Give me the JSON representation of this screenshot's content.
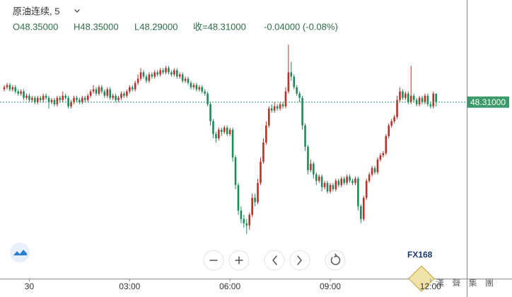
{
  "header": {
    "title": "原油连续, 5",
    "items": [
      "O48.35000",
      "H48.35000",
      "L48.29000",
      "收=48.31000",
      "-0.04000 (-0.08%)"
    ]
  },
  "watermark": {
    "logo": "FX168",
    "name": "漢 聲 集 團"
  },
  "chart_data": {
    "type": "candlestick",
    "up_color": "#b8322a",
    "down_color": "#1f8a5b",
    "ylim": [
      47.48,
      48.79
    ],
    "last_price": {
      "value": 48.31,
      "label": "48.31000"
    },
    "xticks": [
      {
        "value": 9,
        "label": "30"
      },
      {
        "value": 45,
        "label": "03:00"
      },
      {
        "value": 81,
        "label": "06:00"
      },
      {
        "value": 117,
        "label": "09:00"
      },
      {
        "value": 153,
        "label": "12:00"
      }
    ],
    "candles": [
      [
        48.37,
        48.39,
        48.36,
        48.38
      ],
      [
        48.38,
        48.4,
        48.37,
        48.39
      ],
      [
        48.39,
        48.4,
        48.36,
        48.37
      ],
      [
        48.37,
        48.39,
        48.36,
        48.38
      ],
      [
        48.38,
        48.39,
        48.35,
        48.36
      ],
      [
        48.36,
        48.37,
        48.34,
        48.35
      ],
      [
        48.35,
        48.37,
        48.34,
        48.36
      ],
      [
        48.36,
        48.37,
        48.32,
        48.33
      ],
      [
        48.33,
        48.35,
        48.32,
        48.34
      ],
      [
        48.34,
        48.35,
        48.31,
        48.32
      ],
      [
        48.32,
        48.34,
        48.31,
        48.33
      ],
      [
        48.33,
        48.34,
        48.3,
        48.31
      ],
      [
        48.31,
        48.34,
        48.3,
        48.33
      ],
      [
        48.33,
        48.34,
        48.31,
        48.32
      ],
      [
        48.32,
        48.35,
        48.31,
        48.34
      ],
      [
        48.34,
        48.35,
        48.32,
        48.33
      ],
      [
        48.33,
        48.34,
        48.28,
        48.31
      ],
      [
        48.31,
        48.33,
        48.3,
        48.32
      ],
      [
        48.32,
        48.33,
        48.29,
        48.3
      ],
      [
        48.3,
        48.34,
        48.29,
        48.33
      ],
      [
        48.33,
        48.34,
        48.31,
        48.32
      ],
      [
        48.32,
        48.36,
        48.31,
        48.34
      ],
      [
        48.34,
        48.35,
        48.32,
        48.33
      ],
      [
        48.33,
        48.34,
        48.28,
        48.29
      ],
      [
        48.29,
        48.32,
        48.28,
        48.31
      ],
      [
        48.31,
        48.34,
        48.3,
        48.33
      ],
      [
        48.33,
        48.34,
        48.31,
        48.32
      ],
      [
        48.32,
        48.33,
        48.3,
        48.31
      ],
      [
        48.31,
        48.34,
        48.3,
        48.33
      ],
      [
        48.33,
        48.34,
        48.31,
        48.32
      ],
      [
        48.32,
        48.35,
        48.31,
        48.34
      ],
      [
        48.34,
        48.37,
        48.33,
        48.36
      ],
      [
        48.36,
        48.39,
        48.35,
        48.37
      ],
      [
        48.37,
        48.38,
        48.34,
        48.35
      ],
      [
        48.35,
        48.39,
        48.34,
        48.38
      ],
      [
        48.38,
        48.39,
        48.35,
        48.36
      ],
      [
        48.36,
        48.37,
        48.33,
        48.34
      ],
      [
        48.34,
        48.38,
        48.33,
        48.37
      ],
      [
        48.37,
        48.38,
        48.32,
        48.33
      ],
      [
        48.33,
        48.35,
        48.32,
        48.34
      ],
      [
        48.34,
        48.35,
        48.31,
        48.32
      ],
      [
        48.32,
        48.34,
        48.31,
        48.33
      ],
      [
        48.33,
        48.36,
        48.32,
        48.35
      ],
      [
        48.35,
        48.36,
        48.33,
        48.34
      ],
      [
        48.34,
        48.37,
        48.33,
        48.36
      ],
      [
        48.36,
        48.39,
        48.35,
        48.38
      ],
      [
        48.38,
        48.39,
        48.36,
        48.37
      ],
      [
        48.37,
        48.41,
        48.36,
        48.4
      ],
      [
        48.4,
        48.44,
        48.39,
        48.42
      ],
      [
        48.42,
        48.47,
        48.41,
        48.45
      ],
      [
        48.45,
        48.46,
        48.42,
        48.43
      ],
      [
        48.43,
        48.44,
        48.4,
        48.41
      ],
      [
        48.41,
        48.45,
        48.4,
        48.44
      ],
      [
        48.44,
        48.45,
        48.42,
        48.43
      ],
      [
        48.43,
        48.46,
        48.42,
        48.45
      ],
      [
        48.45,
        48.46,
        48.43,
        48.44
      ],
      [
        48.44,
        48.47,
        48.43,
        48.46
      ],
      [
        48.46,
        48.47,
        48.44,
        48.45
      ],
      [
        48.45,
        48.48,
        48.44,
        48.47
      ],
      [
        48.47,
        48.48,
        48.44,
        48.45
      ],
      [
        48.45,
        48.46,
        48.43,
        48.44
      ],
      [
        48.44,
        48.47,
        48.43,
        48.46
      ],
      [
        48.46,
        48.47,
        48.42,
        48.43
      ],
      [
        48.43,
        48.45,
        48.42,
        48.44
      ],
      [
        48.44,
        48.45,
        48.4,
        48.41
      ],
      [
        48.41,
        48.43,
        48.4,
        48.42
      ],
      [
        48.42,
        48.43,
        48.39,
        48.4
      ],
      [
        48.4,
        48.41,
        48.37,
        48.38
      ],
      [
        48.38,
        48.4,
        48.37,
        48.39
      ],
      [
        48.39,
        48.4,
        48.36,
        48.37
      ],
      [
        48.37,
        48.39,
        48.36,
        48.38
      ],
      [
        48.38,
        48.39,
        48.35,
        48.36
      ],
      [
        48.36,
        48.37,
        48.34,
        48.35
      ],
      [
        48.35,
        48.36,
        48.29,
        48.3
      ],
      [
        48.3,
        48.31,
        48.2,
        48.22
      ],
      [
        48.22,
        48.23,
        48.14,
        48.16
      ],
      [
        48.16,
        48.17,
        48.12,
        48.14
      ],
      [
        48.14,
        48.19,
        48.13,
        48.18
      ],
      [
        48.18,
        48.19,
        48.15,
        48.17
      ],
      [
        48.17,
        48.2,
        48.16,
        48.19
      ],
      [
        48.19,
        48.2,
        48.15,
        48.16
      ],
      [
        48.16,
        48.19,
        48.15,
        48.18
      ],
      [
        48.18,
        48.19,
        48.03,
        48.05
      ],
      [
        48.05,
        48.06,
        47.9,
        47.92
      ],
      [
        47.92,
        47.93,
        47.78,
        47.8
      ],
      [
        47.8,
        47.82,
        47.74,
        47.76
      ],
      [
        47.76,
        47.78,
        47.72,
        47.74
      ],
      [
        47.74,
        47.76,
        47.69,
        47.73
      ],
      [
        47.73,
        47.79,
        47.71,
        47.78
      ],
      [
        47.78,
        47.88,
        47.77,
        47.86
      ],
      [
        47.86,
        47.88,
        47.82,
        47.84
      ],
      [
        47.84,
        47.95,
        47.83,
        47.93
      ],
      [
        47.93,
        48.05,
        47.92,
        48.03
      ],
      [
        48.03,
        48.14,
        48.02,
        48.12
      ],
      [
        48.12,
        48.22,
        48.11,
        48.2
      ],
      [
        48.2,
        48.29,
        48.19,
        48.28
      ],
      [
        48.28,
        48.3,
        48.26,
        48.27
      ],
      [
        48.27,
        48.31,
        48.26,
        48.29
      ],
      [
        48.29,
        48.3,
        48.27,
        48.28
      ],
      [
        48.28,
        48.31,
        48.27,
        48.3
      ],
      [
        48.3,
        48.31,
        48.28,
        48.29
      ],
      [
        48.29,
        48.38,
        48.28,
        48.36
      ],
      [
        48.36,
        48.58,
        48.35,
        48.45
      ],
      [
        48.45,
        48.5,
        48.41,
        48.43
      ],
      [
        48.43,
        48.44,
        48.37,
        48.38
      ],
      [
        48.38,
        48.39,
        48.34,
        48.35
      ],
      [
        48.35,
        48.36,
        48.31,
        48.33
      ],
      [
        48.33,
        48.34,
        48.18,
        48.2
      ],
      [
        48.2,
        48.21,
        48.08,
        48.1
      ],
      [
        48.1,
        48.11,
        47.97,
        47.99
      ],
      [
        47.99,
        48.04,
        47.98,
        48.02
      ],
      [
        48.02,
        48.03,
        47.95,
        47.97
      ],
      [
        47.97,
        47.98,
        47.92,
        47.94
      ],
      [
        47.94,
        47.97,
        47.93,
        47.96
      ],
      [
        47.96,
        47.97,
        47.89,
        47.91
      ],
      [
        47.91,
        47.94,
        47.9,
        47.93
      ],
      [
        47.93,
        47.94,
        47.88,
        47.89
      ],
      [
        47.89,
        47.93,
        47.88,
        47.92
      ],
      [
        47.92,
        47.93,
        47.89,
        47.9
      ],
      [
        47.9,
        47.95,
        47.89,
        47.94
      ],
      [
        47.94,
        47.95,
        47.91,
        47.92
      ],
      [
        47.92,
        47.96,
        47.91,
        47.95
      ],
      [
        47.95,
        47.96,
        47.92,
        47.93
      ],
      [
        47.93,
        47.97,
        47.92,
        47.96
      ],
      [
        47.96,
        47.97,
        47.93,
        47.94
      ],
      [
        47.94,
        47.95,
        47.92,
        47.93
      ],
      [
        47.93,
        47.96,
        47.92,
        47.95
      ],
      [
        47.95,
        47.96,
        47.8,
        47.82
      ],
      [
        47.82,
        47.83,
        47.74,
        47.76
      ],
      [
        47.76,
        47.87,
        47.75,
        47.86
      ],
      [
        47.86,
        47.95,
        47.85,
        47.94
      ],
      [
        47.94,
        47.98,
        47.93,
        47.97
      ],
      [
        47.97,
        48.01,
        47.96,
        48.0
      ],
      [
        48.0,
        48.01,
        47.97,
        47.98
      ],
      [
        47.98,
        48.05,
        47.97,
        48.04
      ],
      [
        48.04,
        48.07,
        48.03,
        48.06
      ],
      [
        48.06,
        48.08,
        48.05,
        48.07
      ],
      [
        48.07,
        48.16,
        48.06,
        48.15
      ],
      [
        48.15,
        48.21,
        48.14,
        48.2
      ],
      [
        48.2,
        48.23,
        48.19,
        48.22
      ],
      [
        48.22,
        48.25,
        48.21,
        48.24
      ],
      [
        48.24,
        48.34,
        48.23,
        48.32
      ],
      [
        48.32,
        48.38,
        48.31,
        48.36
      ],
      [
        48.36,
        48.37,
        48.32,
        48.33
      ],
      [
        48.33,
        48.36,
        48.32,
        48.35
      ],
      [
        48.35,
        48.36,
        48.3,
        48.31
      ],
      [
        48.31,
        48.48,
        48.3,
        48.34
      ],
      [
        48.34,
        48.35,
        48.31,
        48.32
      ],
      [
        48.32,
        48.33,
        48.29,
        48.3
      ],
      [
        48.3,
        48.34,
        48.29,
        48.33
      ],
      [
        48.33,
        48.34,
        48.3,
        48.31
      ],
      [
        48.31,
        48.35,
        48.3,
        48.34
      ],
      [
        48.34,
        48.35,
        48.29,
        48.3
      ],
      [
        48.3,
        48.31,
        48.28,
        48.29
      ],
      [
        48.29,
        48.36,
        48.28,
        48.35
      ],
      [
        48.35,
        48.35,
        48.29,
        48.31
      ]
    ]
  }
}
